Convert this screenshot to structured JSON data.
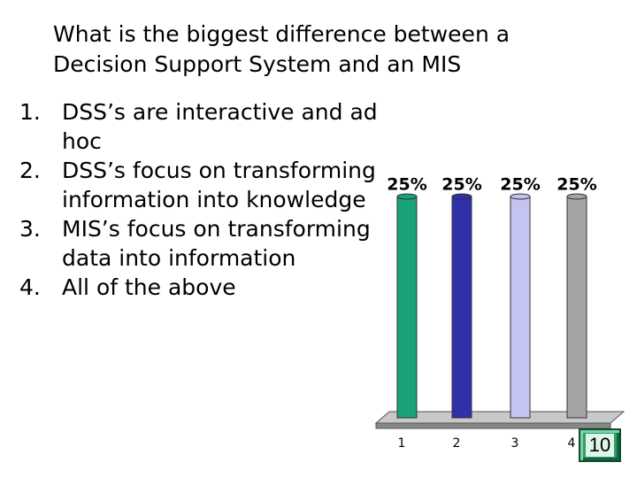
{
  "question": "What is the biggest difference between a Decision Support System and an MIS",
  "options": [
    {
      "number": "1.",
      "text": "DSS’s are interactive and ad hoc"
    },
    {
      "number": "2.",
      "text": "DSS’s focus on transforming information into knowledge"
    },
    {
      "number": "3.",
      "text": "MIS’s focus on transforming data into information"
    },
    {
      "number": "4.",
      "text": "All of the above"
    }
  ],
  "counter": "10",
  "chart_data": {
    "type": "bar",
    "categories": [
      "1",
      "2",
      "3",
      "4"
    ],
    "values": [
      25,
      25,
      25,
      25
    ],
    "value_labels": [
      "25%",
      "25%",
      "25%",
      "25%"
    ],
    "colors": [
      "#1aa37a",
      "#3030a8",
      "#c4c4f2",
      "#a4a4a4"
    ]
  }
}
